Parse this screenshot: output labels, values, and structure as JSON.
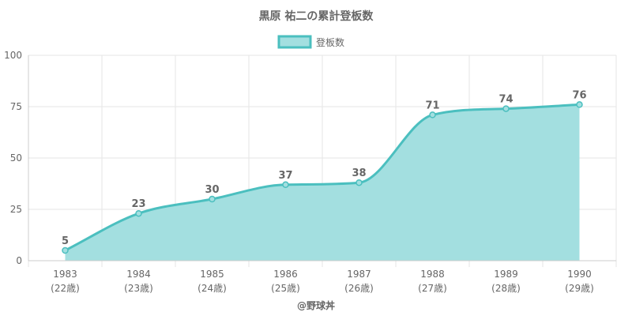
{
  "chart_data": {
    "type": "area",
    "title": "黒原 祐二の累計登板数",
    "legend": {
      "label": "登板数",
      "position": "top"
    },
    "categories": [
      "1983",
      "1984",
      "1985",
      "1986",
      "1987",
      "1988",
      "1989",
      "1990"
    ],
    "sublabels": [
      "(22歳)",
      "(23歳)",
      "(24歳)",
      "(25歳)",
      "(26歳)",
      "(27歳)",
      "(28歳)",
      "(29歳)"
    ],
    "series": [
      {
        "name": "登板数",
        "values": [
          5,
          23,
          30,
          37,
          38,
          71,
          74,
          76
        ]
      }
    ],
    "ylim": [
      0,
      100
    ],
    "yticks": [
      0,
      25,
      50,
      75,
      100
    ],
    "grid": true,
    "footer": "@野球丼",
    "colors": {
      "line": "#4bbfbf",
      "fill": "#a3dfe0",
      "grid": "#e6e6e6",
      "text": "#666666"
    }
  }
}
